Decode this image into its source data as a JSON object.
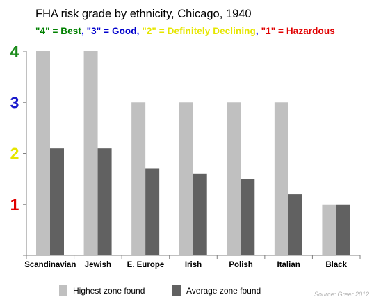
{
  "chart_data": {
    "type": "bar",
    "title": "FHA risk grade by ethnicity, Chicago, 1940",
    "subtitle_parts": [
      {
        "text": "\"4\" = Best",
        "color": "#008000"
      },
      {
        "text": ", ",
        "color": "#0000ff"
      },
      {
        "text": "\"3\" = Good",
        "color": "#0000cc"
      },
      {
        "text": ", ",
        "color": "#0000ff"
      },
      {
        "text": "\"2\" = Definitely Declining",
        "color": "#e6e600"
      },
      {
        "text": ", ",
        "color": "#0000ff"
      },
      {
        "text": "\"1\" = Hazardous",
        "color": "#e00000"
      }
    ],
    "categories": [
      "Scandinavian",
      "Jewish",
      "E. Europe",
      "Irish",
      "Polish",
      "Italian",
      "Black"
    ],
    "series": [
      {
        "name": "Highest zone found",
        "color": "#c0c0c0",
        "values": [
          4,
          4,
          3,
          3,
          3,
          3,
          1
        ]
      },
      {
        "name": "Average zone found",
        "color": "#616161",
        "values": [
          2.1,
          2.1,
          1.7,
          1.6,
          1.5,
          1.2,
          1
        ]
      }
    ],
    "yticks": [
      {
        "value": 1,
        "label": "1",
        "color": "#e00000"
      },
      {
        "value": 2,
        "label": "2",
        "color": "#e6e600"
      },
      {
        "value": 3,
        "label": "3",
        "color": "#1a1acc"
      },
      {
        "value": 4,
        "label": "4",
        "color": "#1a8a1a"
      }
    ],
    "ylim": [
      0,
      4
    ],
    "grid": false,
    "legend_position": "bottom",
    "source": "Source: Greer 2012"
  }
}
